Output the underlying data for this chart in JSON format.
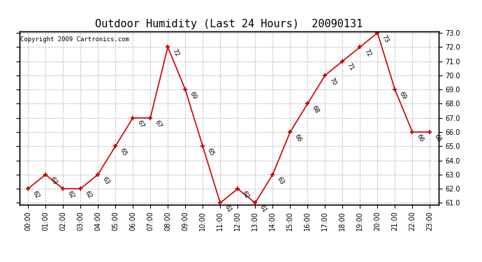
{
  "title": "Outdoor Humidity (Last 24 Hours)  20090131",
  "copyright": "Copyright 2009 Cartronics.com",
  "hours": [
    "00:00",
    "01:00",
    "02:00",
    "03:00",
    "04:00",
    "05:00",
    "06:00",
    "07:00",
    "08:00",
    "09:00",
    "10:00",
    "11:00",
    "12:00",
    "13:00",
    "14:00",
    "15:00",
    "16:00",
    "17:00",
    "18:00",
    "19:00",
    "20:00",
    "21:00",
    "22:00",
    "23:00"
  ],
  "values": [
    62,
    63,
    62,
    62,
    63,
    65,
    67,
    67,
    72,
    69,
    65,
    61,
    62,
    61,
    63,
    66,
    68,
    70,
    71,
    72,
    73,
    69,
    66,
    66
  ],
  "line_color": "#cc0000",
  "marker_color": "#cc0000",
  "background_color": "#ffffff",
  "grid_color": "#bbbbbb",
  "ylim_min": 61.0,
  "ylim_max": 73.0,
  "ytick_step": 1.0,
  "title_fontsize": 11,
  "label_fontsize": 6.5,
  "tick_fontsize": 7,
  "copyright_fontsize": 6.5
}
